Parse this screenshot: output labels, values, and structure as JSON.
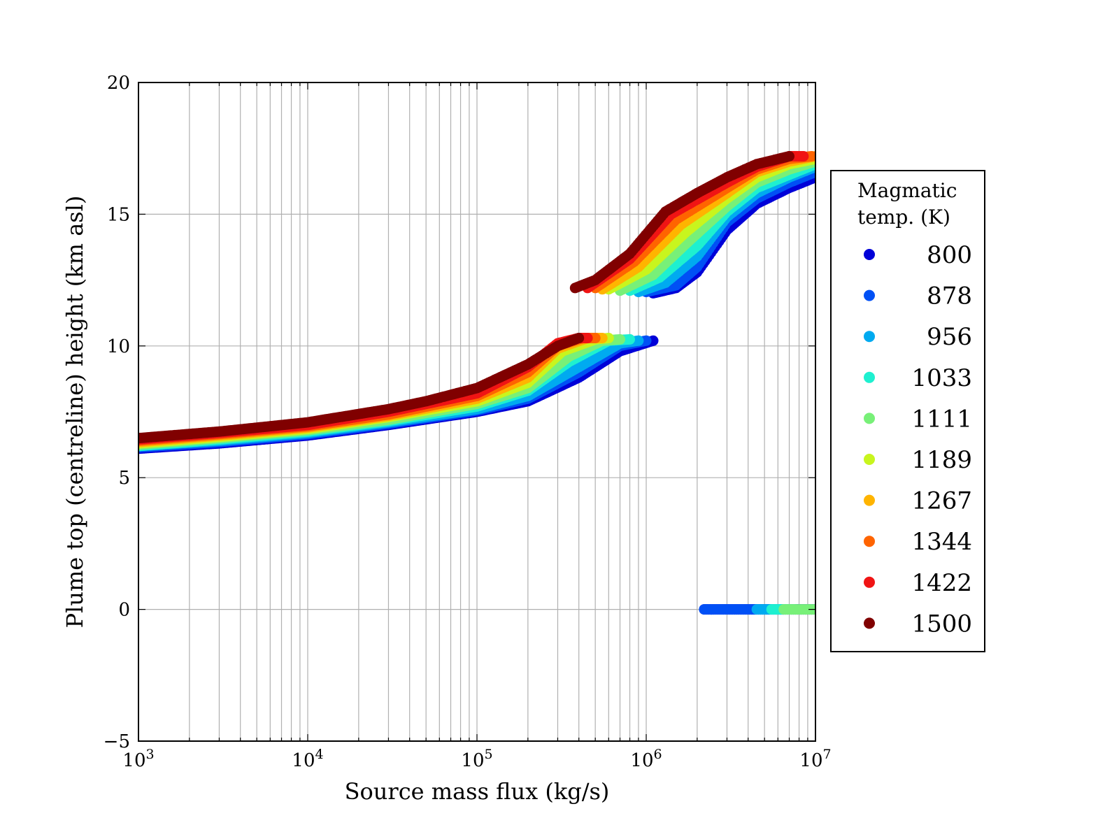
{
  "chart_data": {
    "type": "scatter",
    "title": "",
    "xlabel": "Source mass flux (kg/s)",
    "ylabel": "Plume top (centreline) height (km asl)",
    "xscale": "log",
    "xlim": [
      1000,
      10000000
    ],
    "ylim": [
      -5,
      20
    ],
    "grid": true,
    "x_ticks": [
      {
        "value": 1000,
        "base": "10",
        "exp": "3"
      },
      {
        "value": 10000,
        "base": "10",
        "exp": "4"
      },
      {
        "value": 100000,
        "base": "10",
        "exp": "5"
      },
      {
        "value": 1000000,
        "base": "10",
        "exp": "6"
      },
      {
        "value": 10000000,
        "base": "10",
        "exp": "7"
      }
    ],
    "y_ticks": [
      {
        "value": -5,
        "label": "−5"
      },
      {
        "value": 0,
        "label": "0"
      },
      {
        "value": 5,
        "label": "5"
      },
      {
        "value": 10,
        "label": "10"
      },
      {
        "value": 15,
        "label": "15"
      },
      {
        "value": 20,
        "label": "20"
      }
    ],
    "legend": {
      "title_line1": "Magmatic",
      "title_line2": "temp. (K)",
      "position": "right-outside"
    },
    "series": [
      {
        "name": "800",
        "color": "#0000d8",
        "branches": [
          {
            "x": [
              1000,
              3000,
              10000,
              30000,
              100000,
              200000,
              400000,
              700000,
              1100000
            ],
            "y": [
              6.1,
              6.3,
              6.6,
              7.0,
              7.5,
              7.9,
              8.8,
              9.8,
              10.2
            ]
          },
          {
            "x": [
              1100000,
              1500000,
              2000000,
              3000000,
              4500000,
              7000000,
              10000000
            ],
            "y": [
              12.0,
              12.2,
              12.8,
              14.4,
              15.4,
              16.0,
              16.4
            ]
          },
          {
            "x": [
              2200000,
              2800000,
              3500000,
              4500000,
              10000000
            ],
            "y": [
              0,
              0,
              0,
              0,
              0
            ]
          }
        ]
      },
      {
        "name": "878",
        "color": "#0050f5",
        "branches": [
          {
            "x": [
              1000,
              3000,
              10000,
              30000,
              100000,
              200000,
              400000,
              700000,
              1000000
            ],
            "y": [
              6.15,
              6.35,
              6.65,
              7.05,
              7.55,
              8.0,
              9.0,
              10.0,
              10.2
            ]
          },
          {
            "x": [
              1000000,
              1500000,
              2000000,
              3000000,
              4500000,
              7000000,
              10000000
            ],
            "y": [
              12.05,
              12.3,
              13.0,
              14.7,
              15.6,
              16.2,
              16.6
            ]
          },
          {
            "x": [
              2200000,
              2800000,
              3500000,
              4500000,
              10000000
            ],
            "y": [
              0,
              0,
              0,
              0,
              0
            ]
          }
        ]
      },
      {
        "name": "956",
        "color": "#00aaf0",
        "branches": [
          {
            "x": [
              1000,
              3000,
              10000,
              30000,
              100000,
              200000,
              400000,
              700000,
              900000
            ],
            "y": [
              6.2,
              6.4,
              6.7,
              7.1,
              7.6,
              8.1,
              9.2,
              10.1,
              10.2
            ]
          },
          {
            "x": [
              900000,
              1300000,
              2000000,
              3000000,
              4500000,
              7000000,
              10000000
            ],
            "y": [
              12.05,
              12.4,
              13.4,
              14.9,
              15.8,
              16.4,
              16.8
            ]
          },
          {
            "x": [
              4500000,
              5500000,
              6500000
            ],
            "y": [
              0,
              0,
              0
            ]
          }
        ]
      },
      {
        "name": "1033",
        "color": "#1ef0d0",
        "branches": [
          {
            "x": [
              1000,
              3000,
              10000,
              30000,
              100000,
              200000,
              350000,
              600000,
              800000
            ],
            "y": [
              6.2,
              6.45,
              6.75,
              7.15,
              7.7,
              8.3,
              9.4,
              10.2,
              10.25
            ]
          },
          {
            "x": [
              800000,
              1200000,
              2000000,
              3000000,
              4500000,
              7000000,
              10000000
            ],
            "y": [
              12.1,
              12.6,
              13.8,
              15.1,
              16.0,
              16.5,
              16.9
            ]
          },
          {
            "x": [
              5500000,
              6500000,
              7500000
            ],
            "y": [
              0,
              0,
              0
            ]
          }
        ]
      },
      {
        "name": "1111",
        "color": "#78f078",
        "branches": [
          {
            "x": [
              1000,
              3000,
              10000,
              30000,
              100000,
              200000,
              350000,
              550000,
              700000
            ],
            "y": [
              6.25,
              6.5,
              6.8,
              7.2,
              7.8,
              8.4,
              9.6,
              10.2,
              10.25
            ]
          },
          {
            "x": [
              700000,
              1100000,
              1800000,
              3000000,
              4500000,
              7000000,
              10000000
            ],
            "y": [
              12.1,
              12.7,
              14.0,
              15.3,
              16.2,
              16.7,
              17.0
            ]
          },
          {
            "x": [
              6500000,
              8000000,
              10000000
            ],
            "y": [
              0,
              0,
              0
            ]
          }
        ]
      },
      {
        "name": "1189",
        "color": "#c8f51e",
        "branches": [
          {
            "x": [
              1000,
              3000,
              10000,
              30000,
              100000,
              200000,
              320000,
              500000,
              600000
            ],
            "y": [
              6.3,
              6.55,
              6.85,
              7.3,
              7.9,
              8.6,
              9.8,
              10.25,
              10.3
            ]
          },
          {
            "x": [
              600000,
              1000000,
              1700000,
              3000000,
              4500000,
              7000000,
              10000000
            ],
            "y": [
              12.15,
              12.9,
              14.3,
              15.6,
              16.4,
              16.9,
              17.1
            ]
          }
        ]
      },
      {
        "name": "1267",
        "color": "#ffb400",
        "branches": [
          {
            "x": [
              1000,
              3000,
              10000,
              30000,
              100000,
              200000,
              300000,
              450000,
              550000
            ],
            "y": [
              6.35,
              6.6,
              6.9,
              7.35,
              8.0,
              8.8,
              9.9,
              10.3,
              10.3
            ]
          },
          {
            "x": [
              550000,
              900000,
              1600000,
              3000000,
              4500000,
              7000000,
              10000000
            ],
            "y": [
              12.15,
              13.0,
              14.6,
              15.8,
              16.6,
              17.0,
              17.2
            ]
          }
        ]
      },
      {
        "name": "1344",
        "color": "#ff6400",
        "branches": [
          {
            "x": [
              1000,
              3000,
              10000,
              30000,
              100000,
              200000,
              300000,
              420000,
              500000
            ],
            "y": [
              6.4,
              6.65,
              6.95,
              7.4,
              8.1,
              9.0,
              10.0,
              10.3,
              10.3
            ]
          },
          {
            "x": [
              500000,
              850000,
              1500000,
              3000000,
              4500000,
              7000000,
              9500000
            ],
            "y": [
              12.2,
              13.2,
              14.8,
              16.0,
              16.7,
              17.1,
              17.2
            ]
          }
        ]
      },
      {
        "name": "1422",
        "color": "#f01414",
        "branches": [
          {
            "x": [
              1000,
              3000,
              10000,
              30000,
              100000,
              200000,
              300000,
              400000,
              450000
            ],
            "y": [
              6.45,
              6.7,
              7.0,
              7.5,
              8.2,
              9.2,
              10.1,
              10.3,
              10.3
            ]
          },
          {
            "x": [
              450000,
              800000,
              1400000,
              3000000,
              4500000,
              7000000,
              8500000
            ],
            "y": [
              12.2,
              13.3,
              15.0,
              16.2,
              16.8,
              17.2,
              17.2
            ]
          }
        ]
      },
      {
        "name": "1500",
        "color": "#800000",
        "branches": [
          {
            "x": [
              1000,
              3000,
              10000,
              30000,
              50000,
              100000,
              200000,
              300000,
              400000
            ],
            "y": [
              6.5,
              6.75,
              7.1,
              7.6,
              7.9,
              8.4,
              9.3,
              10.0,
              10.3
            ]
          },
          {
            "x": [
              380000,
              500000,
              800000,
              1300000,
              2000000,
              3000000,
              4500000,
              7000000
            ],
            "y": [
              12.2,
              12.5,
              13.5,
              15.1,
              15.8,
              16.4,
              16.9,
              17.2
            ]
          }
        ]
      }
    ]
  }
}
